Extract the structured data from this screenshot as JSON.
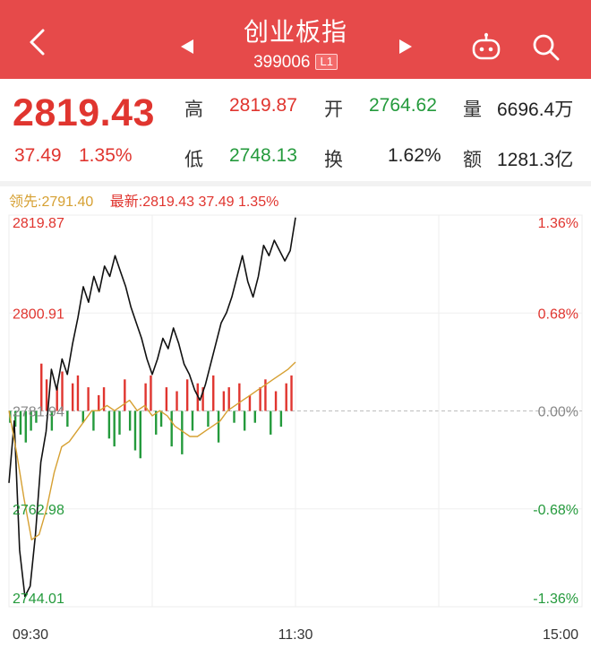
{
  "header": {
    "title": "创业板指",
    "code": "399006",
    "level_badge": "L1"
  },
  "quote": {
    "price": "2819.43",
    "change": "37.49",
    "change_pct": "1.35%",
    "high_label": "高",
    "high_value": "2819.87",
    "open_label": "开",
    "open_value": "2764.62",
    "volume_label": "量",
    "volume_value": "6696.4万",
    "low_label": "低",
    "low_value": "2748.13",
    "turnover_label": "换",
    "turnover_value": "1.62%",
    "amount_label": "额",
    "amount_value": "1281.3亿"
  },
  "legend": {
    "lead_text": "领先:2791.40",
    "latest_text": "最新:2819.43 37.49 1.35%"
  },
  "colors": {
    "header_bg": "#e64a4a",
    "up": "#e0352f",
    "down": "#249a3c",
    "lead_line": "#d6a032",
    "price_line": "#111111"
  },
  "chart_data": {
    "type": "line",
    "y_left_ticks": [
      "2819.87",
      "2800.91",
      "2781.94",
      "2762.98",
      "2744.01"
    ],
    "y_right_ticks": [
      "1.36%",
      "0.68%",
      "0.00%",
      "-0.68%",
      "-1.36%"
    ],
    "x_ticks": [
      "09:30",
      "11:30",
      "15:00"
    ],
    "ylim": [
      2744.01,
      2819.87
    ],
    "prev_close": 2781.94,
    "total_minutes": 240,
    "series": [
      {
        "name": "最新",
        "values": [
          2768,
          2780,
          2755,
          2746,
          2748,
          2758,
          2772,
          2778,
          2790,
          2786,
          2792,
          2789,
          2795,
          2800,
          2806,
          2803,
          2808,
          2805,
          2810,
          2808,
          2812,
          2809,
          2806,
          2802,
          2799,
          2796,
          2792,
          2789,
          2792,
          2796,
          2794,
          2798,
          2795,
          2791,
          2789,
          2786,
          2784,
          2787,
          2791,
          2795,
          2799,
          2801,
          2804,
          2808,
          2812,
          2807,
          2804,
          2808,
          2814,
          2812,
          2815,
          2813,
          2811,
          2813,
          2819.4
        ]
      },
      {
        "name": "领先",
        "values": [
          2782,
          2774,
          2765,
          2757,
          2758,
          2763,
          2770,
          2775,
          2776,
          2778,
          2780,
          2782,
          2782,
          2783,
          2782,
          2783,
          2784,
          2782,
          2783,
          2781,
          2782,
          2781,
          2779,
          2778,
          2777,
          2777,
          2778,
          2779,
          2780,
          2782,
          2783,
          2784,
          2785,
          2786,
          2787,
          2788,
          2789,
          2790,
          2791.4
        ]
      }
    ],
    "volume_bars": [
      -3,
      -4,
      -6,
      -8,
      -5,
      -3,
      12,
      8,
      -5,
      6,
      10,
      -4,
      7,
      9,
      -3,
      6,
      -5,
      4,
      6,
      -7,
      -9,
      -6,
      8,
      -5,
      -10,
      -12,
      7,
      9,
      -6,
      -4,
      6,
      -9,
      5,
      -11,
      8,
      -5,
      7,
      6,
      -4,
      9,
      -8,
      5,
      6,
      -3,
      7,
      -5,
      4,
      -3,
      6,
      8,
      -6,
      5,
      -4,
      7,
      9
    ]
  }
}
